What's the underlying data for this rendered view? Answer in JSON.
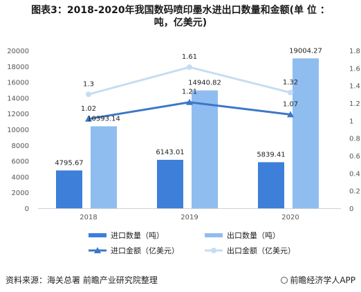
{
  "header": {
    "title_line1": "图表3：2018-2020年我国数码喷印墨水进出口数量和金额(单 位 ：",
    "title_line2": "吨，亿美元)"
  },
  "footer": {
    "source": "资料来源：海关总署 前瞻产业研究院整理",
    "brand": "前瞻经济学人APP"
  },
  "colors": {
    "import_bar": "#3d7fd9",
    "export_bar": "#8fbdf0",
    "import_line": "#3b77c7",
    "export_line": "#c6dcf3",
    "axis_text": "#555555",
    "grid": "#e6e6e6"
  },
  "chart_data": {
    "type": "bar",
    "categories": [
      "2018",
      "2019",
      "2020"
    ],
    "y_left": {
      "min": 0,
      "max": 20000,
      "step": 2000
    },
    "y_right": {
      "min": 0,
      "max": 1.8,
      "step": 0.2
    },
    "series": [
      {
        "name": "进口数量（吨）",
        "kind": "bar",
        "axis": "left",
        "values": [
          4795.67,
          6143.01,
          5839.41
        ],
        "labels": [
          "4795.67",
          "6143.01",
          "5839.41"
        ]
      },
      {
        "name": "出口数量（吨）",
        "kind": "bar",
        "axis": "left",
        "values": [
          10393.14,
          14940.82,
          19004.27
        ],
        "labels": [
          "10393.14",
          "14940.82",
          "19004.27"
        ]
      },
      {
        "name": "进口金额（亿美元）",
        "kind": "line",
        "axis": "right",
        "values": [
          1.02,
          1.21,
          1.07
        ],
        "labels": [
          "1.02",
          "1.21",
          "1.07"
        ]
      },
      {
        "name": "出口金额（亿美元）",
        "kind": "line",
        "axis": "right",
        "values": [
          1.3,
          1.61,
          1.32
        ],
        "labels": [
          "1.3",
          "1.61",
          "1.32"
        ]
      }
    ],
    "left_ticks": [
      "0",
      "2000",
      "4000",
      "6000",
      "8000",
      "10000",
      "12000",
      "14000",
      "16000",
      "18000",
      "20000"
    ],
    "right_ticks": [
      "0",
      "0.2",
      "0.4",
      "0.6",
      "0.8",
      "1",
      "1.2",
      "1.4",
      "1.6",
      "1.8"
    ],
    "grid": false,
    "legend_position": "bottom"
  }
}
